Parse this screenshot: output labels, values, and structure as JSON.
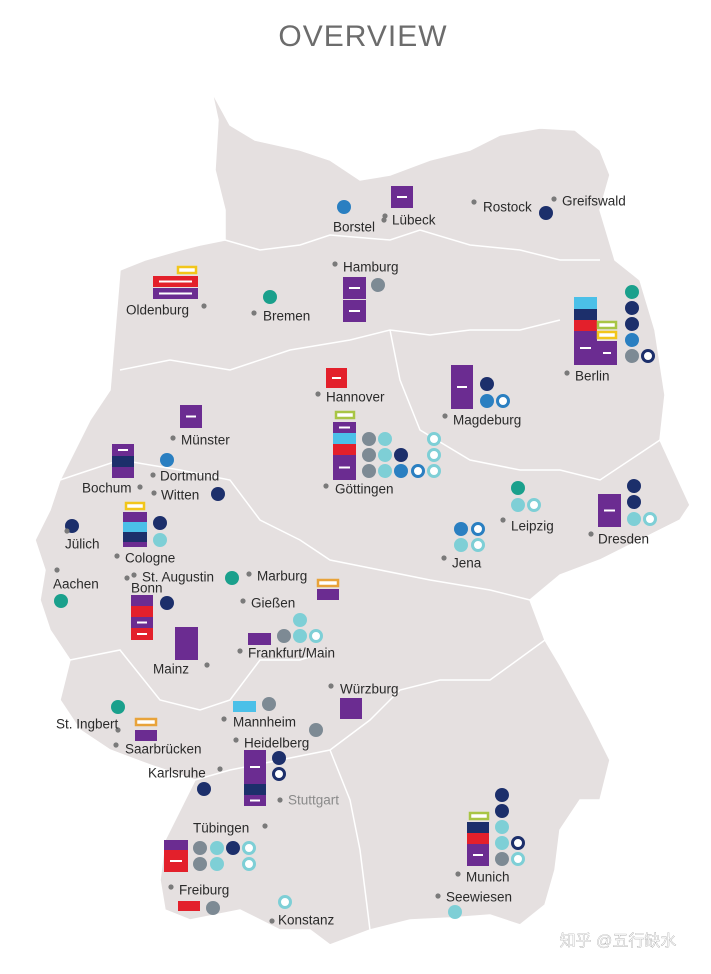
{
  "title": "OVERVIEW",
  "cities": [
    {
      "name": "Borstel"
    },
    {
      "name": "Lübeck"
    },
    {
      "name": "Rostock"
    },
    {
      "name": "Greifswald"
    },
    {
      "name": "Hamburg"
    },
    {
      "name": "Oldenburg"
    },
    {
      "name": "Bremen"
    },
    {
      "name": "Berlin"
    },
    {
      "name": "Hannover"
    },
    {
      "name": "Magdeburg"
    },
    {
      "name": "Münster"
    },
    {
      "name": "Dortmund"
    },
    {
      "name": "Bochum"
    },
    {
      "name": "Witten"
    },
    {
      "name": "Göttingen"
    },
    {
      "name": "Jülich"
    },
    {
      "name": "Cologne"
    },
    {
      "name": "Aachen"
    },
    {
      "name": "St. Augustin"
    },
    {
      "name": "Bonn"
    },
    {
      "name": "Marburg"
    },
    {
      "name": "Gießen"
    },
    {
      "name": "Frankfurt/Main"
    },
    {
      "name": "Leipzig"
    },
    {
      "name": "Jena"
    },
    {
      "name": "Dresden"
    },
    {
      "name": "Mainz"
    },
    {
      "name": "Würzburg"
    },
    {
      "name": "St. Ingbert"
    },
    {
      "name": "Saarbrücken"
    },
    {
      "name": "Mannheim"
    },
    {
      "name": "Heidelberg"
    },
    {
      "name": "Karlsruhe"
    },
    {
      "name": "Stuttgart"
    },
    {
      "name": "Tübingen"
    },
    {
      "name": "Freiburg"
    },
    {
      "name": "Konstanz"
    },
    {
      "name": "Munich"
    },
    {
      "name": "Seewiesen"
    }
  ],
  "watermark": "知乎 @五行缺水"
}
